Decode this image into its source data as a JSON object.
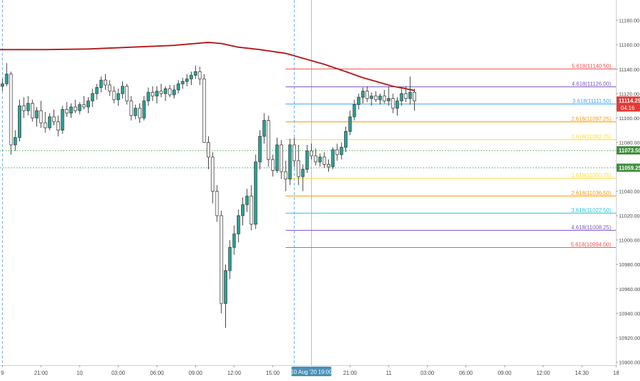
{
  "colors": {
    "bull": "#26a69a",
    "bull_fill": "#ffffff",
    "bear": "#ef5350",
    "candle_outline": "#3d3d3d",
    "ma": "#b71c1c",
    "axis_text": "#4a4a4a",
    "grid": "#e8e8e8",
    "dotted_level": "#4caf50",
    "price_badge": "#e53935",
    "level_badge": "#3d8f3d",
    "time_badge": "#4a90b8",
    "crosshair": "#6aa9ff"
  },
  "chart_data": {
    "type": "candlestick",
    "y_axis": {
      "range": [
        10898,
        11195
      ],
      "ticks": [
        11180,
        11160,
        11140,
        11120,
        11100,
        11080,
        11060,
        11040,
        11020,
        11000,
        10980,
        10960,
        10940,
        10920,
        10900
      ],
      "tick_labels": [
        "11180.00",
        "11160.00",
        "11140.00",
        "11120.00",
        "11100.00",
        "11080.00",
        "11060.00",
        "11040.00",
        "11020.00",
        "11000.00",
        "10980.00",
        "10960.00",
        "10940.00",
        "10920.00",
        "10900.00"
      ]
    },
    "x_axis": {
      "labels": [
        {
          "i": 0,
          "text": "9"
        },
        {
          "i": 9,
          "text": "21:00"
        },
        {
          "i": 18,
          "text": "10"
        },
        {
          "i": 27,
          "text": "03:00"
        },
        {
          "i": 36,
          "text": "06:00"
        },
        {
          "i": 45,
          "text": "09:00"
        },
        {
          "i": 54,
          "text": "12:00"
        },
        {
          "i": 63,
          "text": "15:00"
        },
        {
          "i": 81,
          "text": "21:00"
        },
        {
          "i": 90,
          "text": "11"
        },
        {
          "i": 99,
          "text": "03:00"
        },
        {
          "i": 108,
          "text": "06:00"
        },
        {
          "i": 117,
          "text": "09:00"
        },
        {
          "i": 126,
          "text": "12:00"
        },
        {
          "i": 135,
          "text": "14:30"
        },
        {
          "i": 143,
          "text": "18"
        }
      ]
    },
    "crosshair": {
      "i": 72,
      "label": "10 Aug '20   19:00"
    },
    "dashed_markers": [
      {
        "i": 0
      },
      {
        "i": 68
      }
    ],
    "last_price": {
      "value": 11114.25,
      "label": "11114.25",
      "countdown": "04:16"
    },
    "dotted_levels": [
      {
        "value": 11073.5,
        "label": "11073.50"
      },
      {
        "value": 11059.25,
        "label": "11059.25"
      }
    ],
    "fib_levels": [
      {
        "value": 11140.5,
        "label": "5.618(11140.50)",
        "color": "#ef5350"
      },
      {
        "value": 11126.0,
        "label": "4.618(11126.00)",
        "color": "#7e57c2"
      },
      {
        "value": 11111.5,
        "label": "3.618(11111.50)",
        "color": "#42a5f5"
      },
      {
        "value": 11097.25,
        "label": "2.618(11097.25)",
        "color": "#ff9800"
      },
      {
        "value": 11082.75,
        "label": "1.618(11082.75)",
        "color": "#ffe033"
      },
      {
        "value": 11050.75,
        "label": "1.618(11050.75)",
        "color": "#ffe033"
      },
      {
        "value": 11036.5,
        "label": "2.618(11036.50)",
        "color": "#ff9800"
      },
      {
        "value": 11022.5,
        "label": "3.618(11022.50)",
        "color": "#26c6da"
      },
      {
        "value": 11008.25,
        "label": "4.618(11008.25)",
        "color": "#7e57c2"
      },
      {
        "value": 10994.0,
        "label": "5.618(10994.00)",
        "color": "#ef5350"
      }
    ],
    "fib_span": {
      "i_start": 66
    },
    "ma_line": [
      [
        -1,
        11156
      ],
      [
        10,
        11156
      ],
      [
        20,
        11156.5
      ],
      [
        30,
        11158
      ],
      [
        40,
        11159.5
      ],
      [
        48,
        11162
      ],
      [
        51,
        11161
      ],
      [
        55,
        11158
      ],
      [
        60,
        11156
      ],
      [
        66,
        11153
      ],
      [
        70,
        11149
      ],
      [
        75,
        11144
      ],
      [
        80,
        11138
      ],
      [
        84,
        11133
      ],
      [
        88,
        11129
      ],
      [
        91,
        11126
      ],
      [
        94,
        11124
      ],
      [
        96,
        11122.5
      ]
    ],
    "candles": [
      [
        0,
        11126,
        11132,
        11122,
        11128
      ],
      [
        1,
        11128,
        11145,
        11126,
        11136
      ],
      [
        2,
        11136,
        11138,
        11070,
        11078
      ],
      [
        3,
        11078,
        11090,
        11073,
        11084
      ],
      [
        4,
        11084,
        11115,
        11081,
        11110
      ],
      [
        5,
        11110,
        11117,
        11100,
        11106
      ],
      [
        6,
        11106,
        11118,
        11102,
        11112
      ],
      [
        7,
        11112,
        11115,
        11097,
        11100
      ],
      [
        8,
        11100,
        11109,
        11093,
        11106
      ],
      [
        9,
        11106,
        11114,
        11092,
        11096
      ],
      [
        10,
        11096,
        11105,
        11088,
        11092
      ],
      [
        11,
        11092,
        11104,
        11090,
        11101
      ],
      [
        12,
        11101,
        11107,
        11094,
        11097
      ],
      [
        13,
        11097,
        11102,
        11085,
        11090
      ],
      [
        14,
        11090,
        11110,
        11087,
        11107
      ],
      [
        15,
        11107,
        11113,
        11101,
        11104
      ],
      [
        16,
        11104,
        11112,
        11100,
        11109
      ],
      [
        17,
        11109,
        11115,
        11104,
        11106
      ],
      [
        18,
        11106,
        11113,
        11103,
        11111
      ],
      [
        19,
        11111,
        11118,
        11107,
        11109
      ],
      [
        20,
        11109,
        11117,
        11104,
        11114
      ],
      [
        21,
        11114,
        11124,
        11109,
        11120
      ],
      [
        22,
        11120,
        11128,
        11115,
        11125
      ],
      [
        23,
        11125,
        11134,
        11121,
        11131
      ],
      [
        24,
        11131,
        11136,
        11123,
        11127
      ],
      [
        25,
        11127,
        11131,
        11118,
        11122
      ],
      [
        26,
        11122,
        11126,
        11112,
        11115
      ],
      [
        27,
        11115,
        11124,
        11110,
        11120
      ],
      [
        28,
        11120,
        11130,
        11116,
        11126
      ],
      [
        29,
        11126,
        11128,
        11111,
        11114
      ],
      [
        30,
        11114,
        11118,
        11098,
        11102
      ],
      [
        31,
        11102,
        11111,
        11099,
        11108
      ],
      [
        32,
        11108,
        11112,
        11096,
        11100
      ],
      [
        33,
        11100,
        11118,
        11098,
        11114
      ],
      [
        34,
        11114,
        11125,
        11110,
        11121
      ],
      [
        35,
        11121,
        11126,
        11114,
        11118
      ],
      [
        36,
        11118,
        11126,
        11112,
        11122
      ],
      [
        37,
        11122,
        11128,
        11117,
        11120
      ],
      [
        38,
        11120,
        11126,
        11114,
        11124
      ],
      [
        39,
        11124,
        11127,
        11117,
        11119
      ],
      [
        40,
        11119,
        11127,
        11116,
        11123
      ],
      [
        41,
        11123,
        11131,
        11120,
        11128
      ],
      [
        42,
        11128,
        11133,
        11124,
        11130
      ],
      [
        43,
        11130,
        11136,
        11126,
        11132
      ],
      [
        44,
        11132,
        11138,
        11127,
        11135
      ],
      [
        45,
        11135,
        11143,
        11132,
        11138
      ],
      [
        46,
        11138,
        11142,
        11127,
        11132
      ],
      [
        47,
        11132,
        11136,
        11080,
        11080
      ],
      [
        48,
        11080,
        11085,
        11058,
        11068
      ],
      [
        49,
        11068,
        11072,
        11030,
        11040
      ],
      [
        50,
        11040,
        11045,
        11015,
        11020
      ],
      [
        51,
        11020,
        11024,
        10940,
        10948
      ],
      [
        52,
        10948,
        10980,
        10928,
        10975
      ],
      [
        53,
        10975,
        11000,
        10968,
        10994
      ],
      [
        54,
        10994,
        11012,
        10988,
        11005
      ],
      [
        55,
        11005,
        11025,
        10998,
        11020
      ],
      [
        56,
        11020,
        11035,
        11012,
        11029
      ],
      [
        57,
        11029,
        11042,
        11023,
        11036
      ],
      [
        58,
        11036,
        11045,
        11008,
        11013
      ],
      [
        59,
        11013,
        11070,
        11009,
        11064
      ],
      [
        60,
        11064,
        11090,
        11058,
        11085
      ],
      [
        61,
        11085,
        11104,
        11079,
        11098
      ],
      [
        62,
        11098,
        11102,
        11060,
        11066
      ],
      [
        63,
        11066,
        11070,
        11052,
        11057
      ],
      [
        64,
        11057,
        11084,
        11055,
        11078
      ],
      [
        65,
        11078,
        11082,
        11050,
        11056
      ],
      [
        66,
        11056,
        11065,
        11040,
        11050
      ],
      [
        67,
        11050,
        11083,
        11045,
        11078
      ],
      [
        68,
        11078,
        11084,
        11060,
        11065
      ],
      [
        69,
        11065,
        11078,
        11045,
        11052
      ],
      [
        70,
        11052,
        11062,
        11040,
        11058
      ],
      [
        71,
        11058,
        11078,
        11055,
        11073
      ],
      [
        72,
        11073,
        11079,
        11066,
        11069
      ],
      [
        73,
        11069,
        11075,
        11061,
        11064
      ],
      [
        74,
        11064,
        11071,
        11060,
        11068
      ],
      [
        75,
        11068,
        11072,
        11059,
        11062
      ],
      [
        76,
        11062,
        11066,
        11056,
        11060
      ],
      [
        77,
        11060,
        11076,
        11058,
        11074
      ],
      [
        78,
        11074,
        11079,
        11065,
        11070
      ],
      [
        79,
        11070,
        11080,
        11066,
        11076
      ],
      [
        80,
        11076,
        11093,
        11072,
        11089
      ],
      [
        81,
        11089,
        11106,
        11086,
        11101
      ],
      [
        82,
        11101,
        11115,
        11098,
        11111
      ],
      [
        83,
        11111,
        11120,
        11107,
        11117
      ],
      [
        84,
        11117,
        11125,
        11112,
        11122
      ],
      [
        85,
        11122,
        11126,
        11113,
        11116
      ],
      [
        86,
        11116,
        11121,
        11110,
        11118
      ],
      [
        87,
        11118,
        11122,
        11113,
        11115
      ],
      [
        88,
        11115,
        11120,
        11111,
        11118
      ],
      [
        89,
        11118,
        11123,
        11112,
        11114
      ],
      [
        90,
        11114,
        11126,
        11110,
        11116
      ],
      [
        91,
        11116,
        11120,
        11104,
        11108
      ],
      [
        92,
        11108,
        11117,
        11102,
        11114
      ],
      [
        93,
        11114,
        11124,
        11110,
        11120
      ],
      [
        94,
        11120,
        11126,
        11113,
        11116
      ],
      [
        95,
        11116,
        11134,
        11111,
        11121
      ],
      [
        96,
        11121,
        11124,
        11106,
        11114
      ]
    ]
  }
}
